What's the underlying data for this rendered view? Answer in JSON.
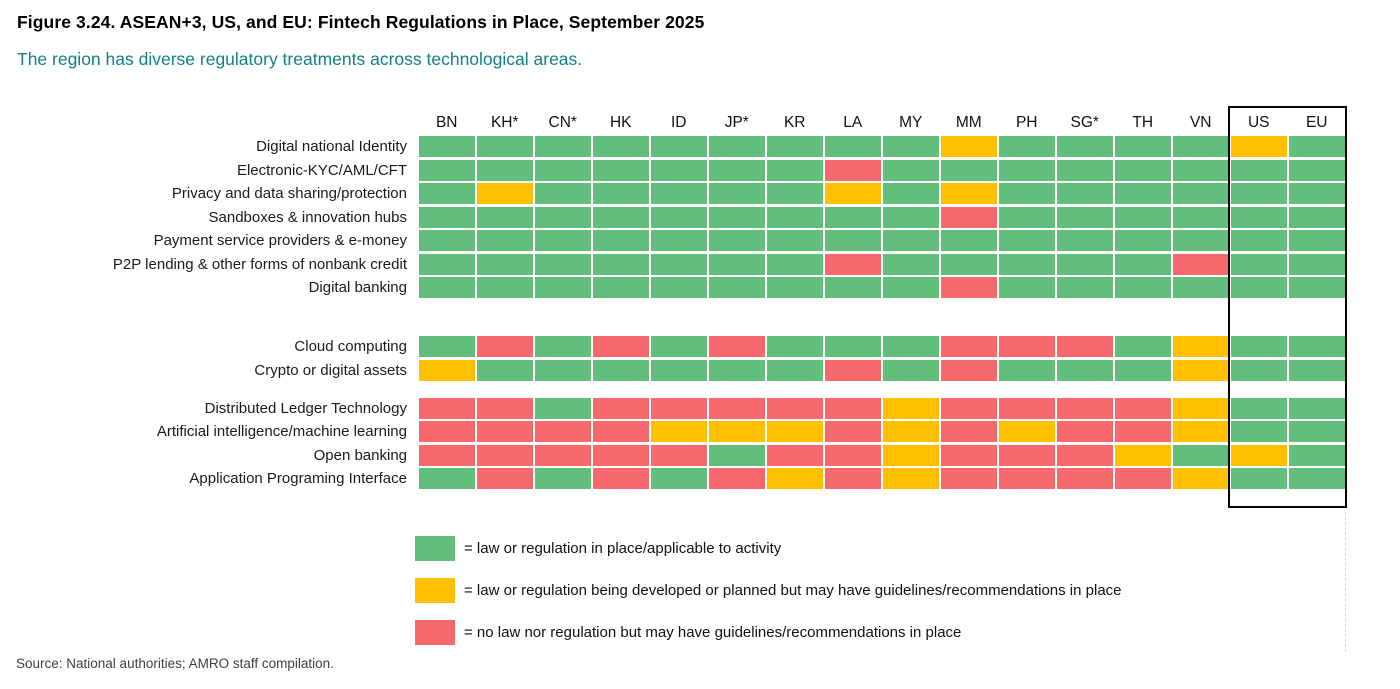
{
  "header": {
    "title": "Figure 3.24. ASEAN+3, US, and EU: Fintech Regulations in Place, September 2025",
    "subtitle": "The region has diverse regulatory treatments across technological areas."
  },
  "colors": {
    "G": "#62be7b",
    "Y": "#ffc000",
    "R": "#f7696c",
    "subtitle_teal": "#127f87",
    "highlight_box_border": "#000000"
  },
  "chart_data": {
    "type": "heatmap",
    "title": "ASEAN+3, US, and EU: Fintech Regulations in Place, September 2025",
    "columns": [
      "BN",
      "KH*",
      "CN*",
      "HK",
      "ID",
      "JP*",
      "KR",
      "LA",
      "MY",
      "MM",
      "PH",
      "SG*",
      "TH",
      "VN",
      "US",
      "EU"
    ],
    "highlighted_columns": [
      "US",
      "EU"
    ],
    "value_key": {
      "G": "law or regulation in place/applicable to activity",
      "Y": "law or regulation being developed or planned but may have guidelines/recommendations in place",
      "R": "no law nor regulation but may have guidelines/recommendations in place"
    },
    "groups": [
      {
        "rows": [
          {
            "label": "Digital national Identity",
            "values": [
              "G",
              "G",
              "G",
              "G",
              "G",
              "G",
              "G",
              "G",
              "G",
              "Y",
              "G",
              "G",
              "G",
              "G",
              "Y",
              "G"
            ]
          },
          {
            "label": "Electronic-KYC/AML/CFT",
            "values": [
              "G",
              "G",
              "G",
              "G",
              "G",
              "G",
              "G",
              "R",
              "G",
              "G",
              "G",
              "G",
              "G",
              "G",
              "G",
              "G"
            ]
          },
          {
            "label": "Privacy and data sharing/protection",
            "values": [
              "G",
              "Y",
              "G",
              "G",
              "G",
              "G",
              "G",
              "Y",
              "G",
              "Y",
              "G",
              "G",
              "G",
              "G",
              "G",
              "G"
            ]
          },
          {
            "label": "Sandboxes & innovation hubs",
            "values": [
              "G",
              "G",
              "G",
              "G",
              "G",
              "G",
              "G",
              "G",
              "G",
              "R",
              "G",
              "G",
              "G",
              "G",
              "G",
              "G"
            ]
          },
          {
            "label": "Payment service providers & e-money",
            "values": [
              "G",
              "G",
              "G",
              "G",
              "G",
              "G",
              "G",
              "G",
              "G",
              "G",
              "G",
              "G",
              "G",
              "G",
              "G",
              "G"
            ]
          },
          {
            "label": "P2P lending & other forms of nonbank credit",
            "values": [
              "G",
              "G",
              "G",
              "G",
              "G",
              "G",
              "G",
              "R",
              "G",
              "G",
              "G",
              "G",
              "G",
              "R",
              "G",
              "G"
            ]
          },
          {
            "label": "Digital banking",
            "values": [
              "G",
              "G",
              "G",
              "G",
              "G",
              "G",
              "G",
              "G",
              "G",
              "R",
              "G",
              "G",
              "G",
              "G",
              "G",
              "G"
            ]
          }
        ]
      },
      {
        "rows": [
          {
            "label": "Cloud computing",
            "values": [
              "G",
              "R",
              "G",
              "R",
              "G",
              "R",
              "G",
              "G",
              "G",
              "R",
              "R",
              "R",
              "G",
              "Y",
              "G",
              "G"
            ]
          },
          {
            "label": "Crypto or digital assets",
            "values": [
              "Y",
              "G",
              "G",
              "G",
              "G",
              "G",
              "G",
              "R",
              "G",
              "R",
              "G",
              "G",
              "G",
              "Y",
              "G",
              "G"
            ]
          }
        ]
      },
      {
        "rows": [
          {
            "label": "Distributed Ledger Technology",
            "values": [
              "R",
              "R",
              "G",
              "R",
              "R",
              "R",
              "R",
              "R",
              "Y",
              "R",
              "R",
              "R",
              "R",
              "Y",
              "G",
              "G"
            ]
          },
          {
            "label": "Artificial intelligence/machine learning",
            "values": [
              "R",
              "R",
              "R",
              "R",
              "Y",
              "Y",
              "Y",
              "R",
              "Y",
              "R",
              "Y",
              "R",
              "R",
              "Y",
              "G",
              "G"
            ]
          },
          {
            "label": "Open banking",
            "values": [
              "R",
              "R",
              "R",
              "R",
              "R",
              "G",
              "R",
              "R",
              "Y",
              "R",
              "R",
              "R",
              "Y",
              "G",
              "Y",
              "G"
            ]
          },
          {
            "label": "Application Programing Interface",
            "values": [
              "G",
              "R",
              "G",
              "R",
              "G",
              "R",
              "Y",
              "R",
              "Y",
              "R",
              "R",
              "R",
              "R",
              "Y",
              "G",
              "G"
            ]
          }
        ]
      }
    ],
    "legend": [
      {
        "key": "G",
        "color": "#62be7b",
        "label": "= law or regulation in place/applicable to activity"
      },
      {
        "key": "Y",
        "color": "#ffc000",
        "label": "= law or regulation being developed or planned but may have guidelines/recommendations in place"
      },
      {
        "key": "R",
        "color": "#f7696c",
        "label": "= no law nor regulation but may have guidelines/recommendations in place"
      }
    ],
    "layout": {
      "grid_lines": "white",
      "row_groups": 3,
      "legend_position": "below-left"
    }
  },
  "footer": {
    "source": "Source: National authorities; AMRO staff compilation."
  }
}
